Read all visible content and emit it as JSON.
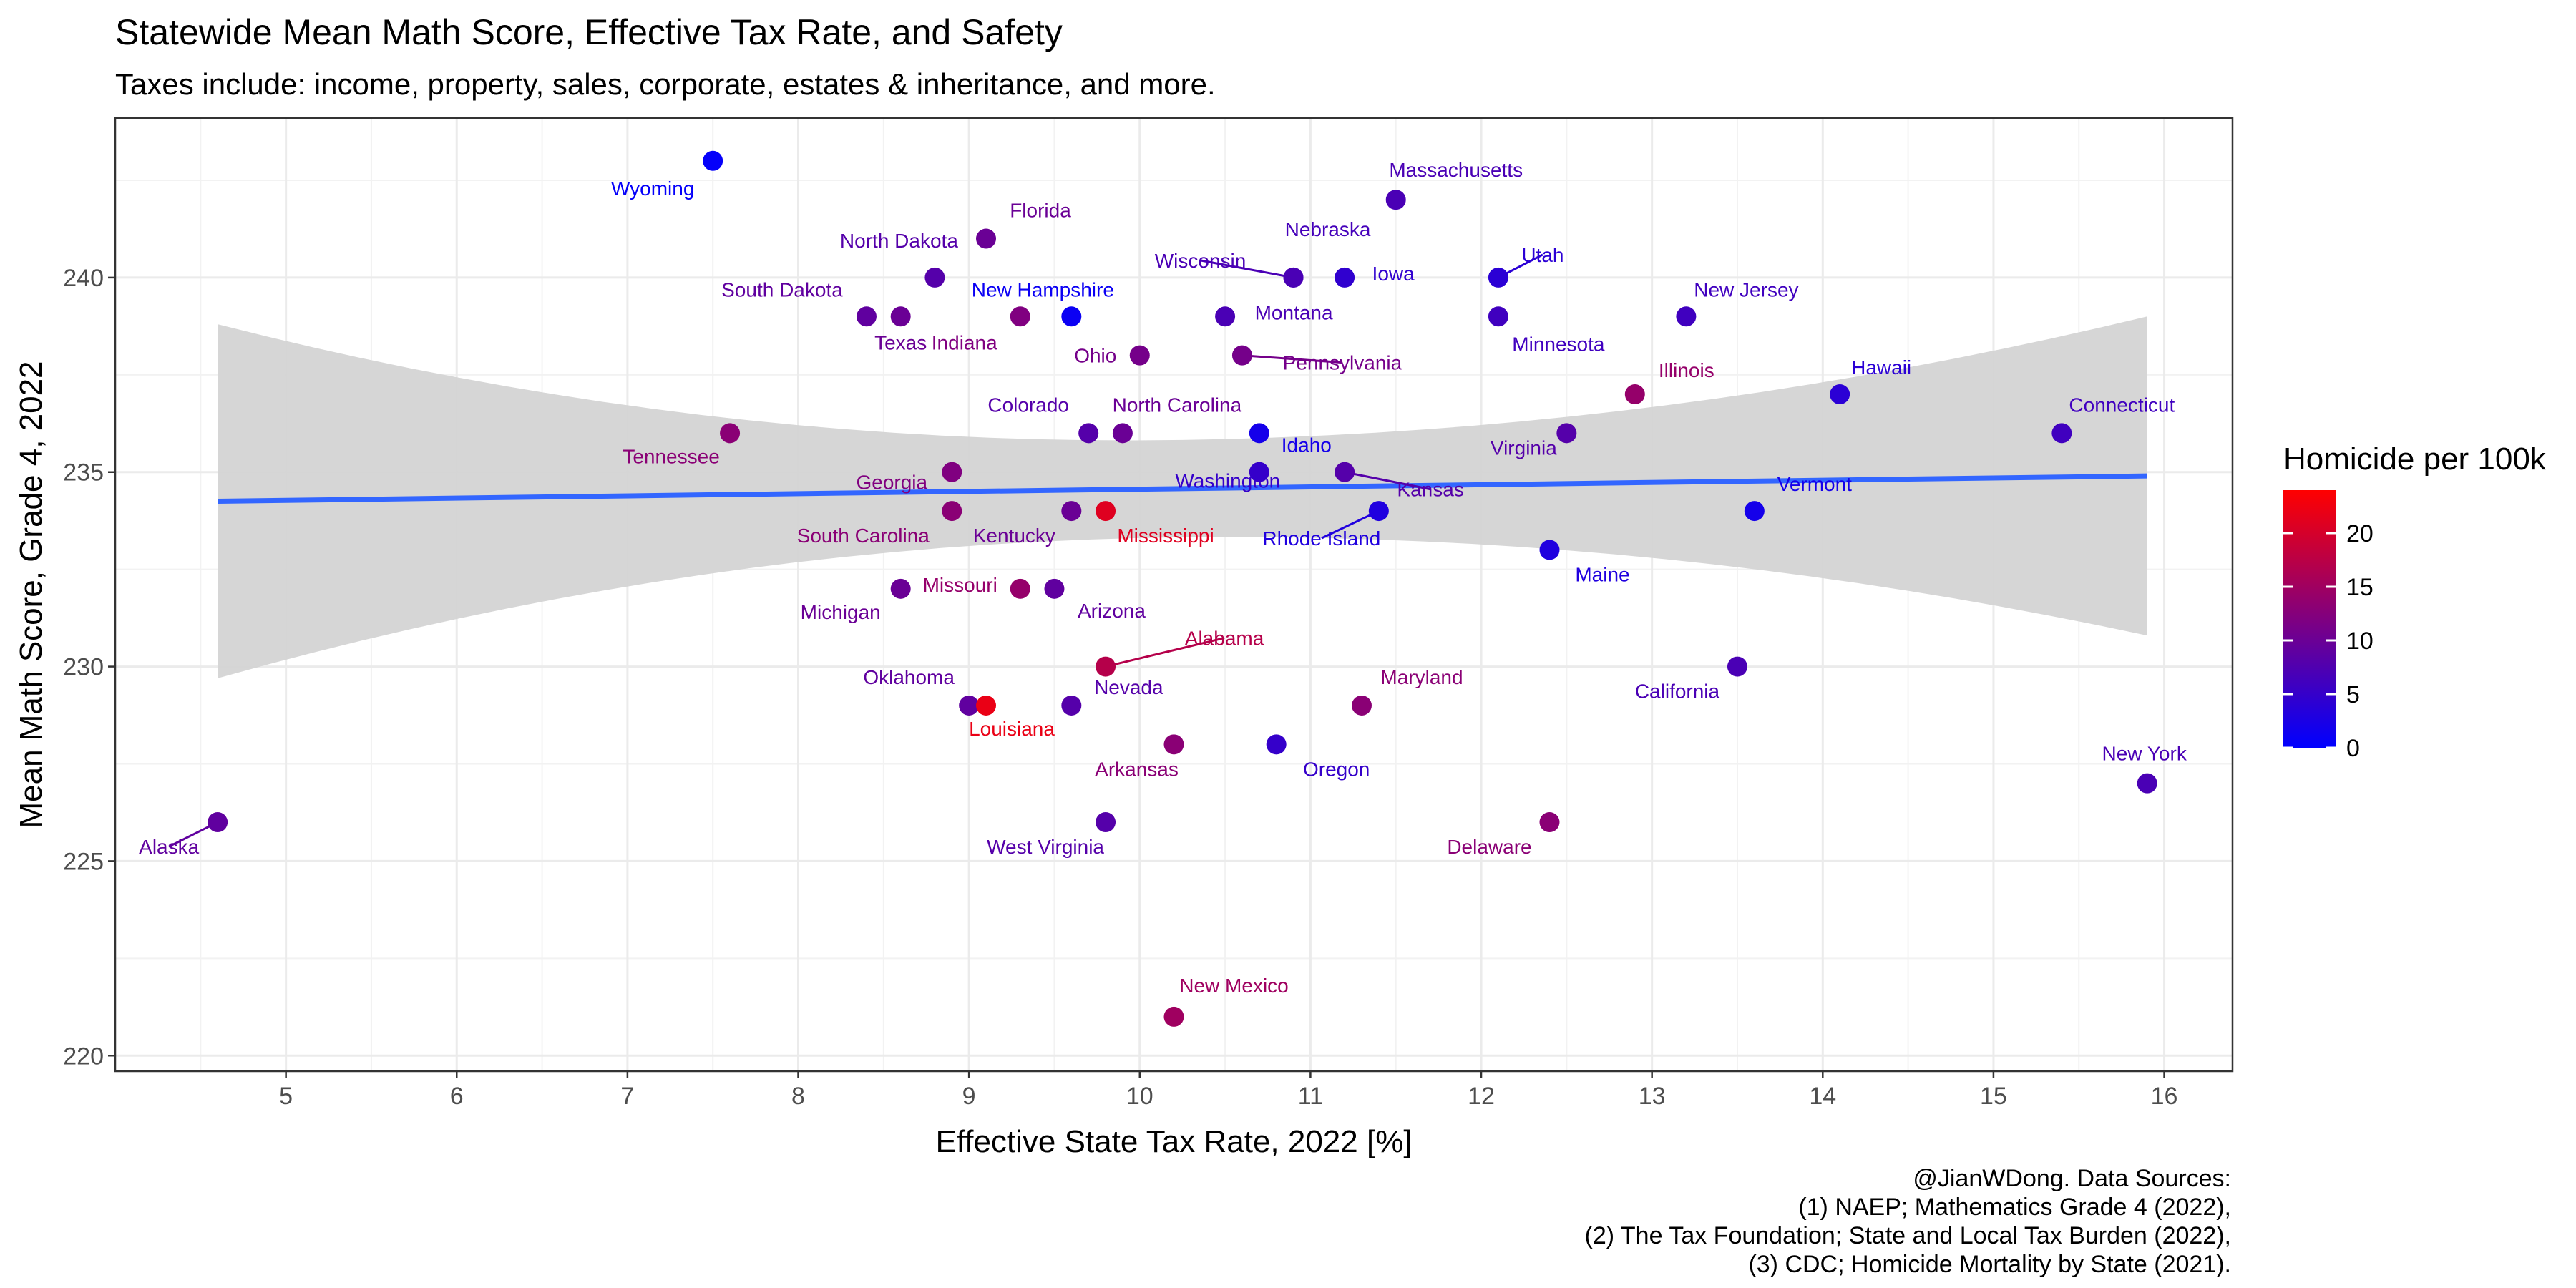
{
  "chart_data": {
    "type": "scatter",
    "title": "Statewide Mean Math Score, Effective Tax Rate, and Safety",
    "subtitle": "Taxes include: income, property, sales, corporate, estates & inheritance, and more.",
    "xlabel": "Effective State Tax Rate, 2022 [%]",
    "ylabel": "Mean Math Score, Grade 4, 2022",
    "xlim": [
      4.0,
      16.4
    ],
    "ylim": [
      219.6,
      244.1
    ],
    "xticks": [
      5,
      6,
      7,
      8,
      9,
      10,
      11,
      12,
      13,
      14,
      15,
      16
    ],
    "yticks": [
      220,
      225,
      230,
      235,
      240
    ],
    "grid": true,
    "legend": {
      "title": "Homicide per 100k",
      "placement": "right",
      "ticks": [
        0,
        5,
        10,
        15,
        20
      ],
      "range": [
        0,
        24
      ],
      "low_color": "#0000ff",
      "high_color": "#ff0000"
    },
    "trend": {
      "method": "linear fit with confidence band",
      "x": [
        4.6,
        15.9
      ],
      "y": [
        234.25,
        234.9
      ],
      "band_lower": [
        229.7,
        230.8
      ],
      "band_upper": [
        238.8,
        239.0
      ],
      "line_color": "#3366ff",
      "band_color": "#d4d4d4"
    },
    "points": [
      {
        "state": "Wyoming",
        "x": 7.5,
        "y": 243,
        "homicide": 0.5
      },
      {
        "state": "Massachusetts",
        "x": 11.5,
        "y": 242,
        "homicide": 7
      },
      {
        "state": "Florida",
        "x": 9.1,
        "y": 241,
        "homicide": 10
      },
      {
        "state": "North Dakota",
        "x": 8.8,
        "y": 240,
        "homicide": 8
      },
      {
        "state": "Nebraska",
        "x": 10.9,
        "y": 240,
        "homicide": 6.5
      },
      {
        "state": "Wisconsin",
        "x": 10.9,
        "y": 240,
        "homicide": 7
      },
      {
        "state": "Iowa",
        "x": 11.2,
        "y": 240,
        "homicide": 4.5
      },
      {
        "state": "Utah",
        "x": 12.1,
        "y": 240,
        "homicide": 4
      },
      {
        "state": "South Dakota",
        "x": 8.4,
        "y": 239,
        "homicide": 9
      },
      {
        "state": "Texas",
        "x": 8.6,
        "y": 239,
        "homicide": 10
      },
      {
        "state": "Indiana",
        "x": 9.3,
        "y": 239,
        "homicide": 12
      },
      {
        "state": "New Hampshire",
        "x": 9.6,
        "y": 239,
        "homicide": 1
      },
      {
        "state": "Montana",
        "x": 10.5,
        "y": 239,
        "homicide": 7
      },
      {
        "state": "Minnesota",
        "x": 12.1,
        "y": 239,
        "homicide": 6
      },
      {
        "state": "New Jersey",
        "x": 13.2,
        "y": 239,
        "homicide": 6
      },
      {
        "state": "Ohio",
        "x": 10.0,
        "y": 238,
        "homicide": 11
      },
      {
        "state": "Pennsylvania",
        "x": 10.6,
        "y": 238,
        "homicide": 11
      },
      {
        "state": "Illinois",
        "x": 12.9,
        "y": 237,
        "homicide": 14
      },
      {
        "state": "Hawaii",
        "x": 14.1,
        "y": 237,
        "homicide": 4
      },
      {
        "state": "Colorado",
        "x": 9.7,
        "y": 236,
        "homicide": 8
      },
      {
        "state": "North Carolina",
        "x": 9.9,
        "y": 236,
        "homicide": 10
      },
      {
        "state": "Idaho",
        "x": 10.7,
        "y": 236,
        "homicide": 2
      },
      {
        "state": "Tennessee",
        "x": 7.6,
        "y": 236,
        "homicide": 13
      },
      {
        "state": "Virginia",
        "x": 12.5,
        "y": 236,
        "homicide": 8
      },
      {
        "state": "Connecticut",
        "x": 15.4,
        "y": 236,
        "homicide": 6
      },
      {
        "state": "Georgia",
        "x": 8.9,
        "y": 235,
        "homicide": 12
      },
      {
        "state": "Washington",
        "x": 10.7,
        "y": 235,
        "homicide": 5
      },
      {
        "state": "Kansas",
        "x": 11.2,
        "y": 235,
        "homicide": 8
      },
      {
        "state": "South Carolina",
        "x": 8.9,
        "y": 234,
        "homicide": 13
      },
      {
        "state": "Kentucky",
        "x": 9.6,
        "y": 234,
        "homicide": 10
      },
      {
        "state": "Mississippi",
        "x": 9.8,
        "y": 234,
        "homicide": 21
      },
      {
        "state": "Rhode Island",
        "x": 11.4,
        "y": 234,
        "homicide": 3
      },
      {
        "state": "Vermont",
        "x": 13.6,
        "y": 234,
        "homicide": 2
      },
      {
        "state": "Maine",
        "x": 12.4,
        "y": 233,
        "homicide": 3
      },
      {
        "state": "Michigan",
        "x": 8.6,
        "y": 232,
        "homicide": 10
      },
      {
        "state": "Missouri",
        "x": 9.3,
        "y": 232,
        "homicide": 14
      },
      {
        "state": "Arizona",
        "x": 9.5,
        "y": 232,
        "homicide": 9
      },
      {
        "state": "Alabama",
        "x": 9.8,
        "y": 230,
        "homicide": 17
      },
      {
        "state": "California",
        "x": 13.5,
        "y": 230,
        "homicide": 7
      },
      {
        "state": "Oklahoma",
        "x": 9.0,
        "y": 229,
        "homicide": 9
      },
      {
        "state": "Louisiana",
        "x": 9.1,
        "y": 229,
        "homicide": 22
      },
      {
        "state": "Nevada",
        "x": 9.6,
        "y": 229,
        "homicide": 8
      },
      {
        "state": "Maryland",
        "x": 11.3,
        "y": 229,
        "homicide": 13
      },
      {
        "state": "Arkansas",
        "x": 10.2,
        "y": 228,
        "homicide": 13
      },
      {
        "state": "Oregon",
        "x": 10.8,
        "y": 228,
        "homicide": 5
      },
      {
        "state": "New York",
        "x": 15.9,
        "y": 227,
        "homicide": 7
      },
      {
        "state": "Alaska",
        "x": 4.6,
        "y": 226,
        "homicide": 9
      },
      {
        "state": "West Virginia",
        "x": 9.8,
        "y": 226,
        "homicide": 8
      },
      {
        "state": "Delaware",
        "x": 12.4,
        "y": 226,
        "homicide": 13
      },
      {
        "state": "New Mexico",
        "x": 10.2,
        "y": 221,
        "homicide": 15
      }
    ],
    "caption": [
      "@JianWDong. Data Sources:",
      "(1) NAEP; Mathematics Grade 4 (2022),",
      "(2) The Tax Foundation; State and Local Tax Burden (2022),",
      "(3) CDC; Homicide Mortality by State (2021)."
    ]
  }
}
